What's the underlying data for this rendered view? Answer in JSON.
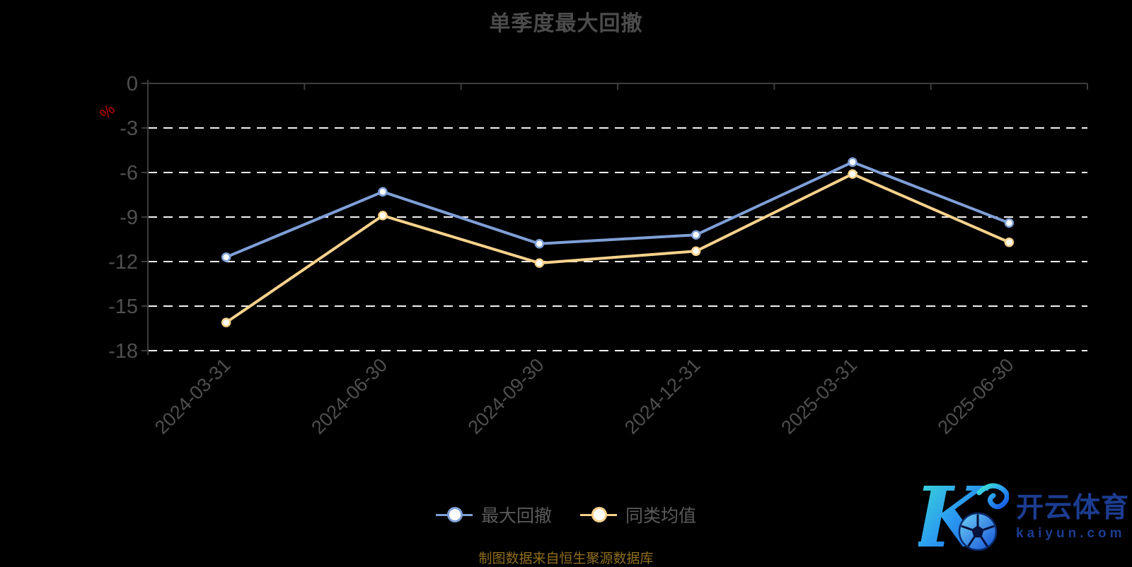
{
  "title": "单季度最大回撤",
  "caption": "制图数据来自恒生聚源数据库",
  "watermark": {
    "brand": "开云体育",
    "domain": "kaiyun.com",
    "logo_icon": "soccer-ball-K-logo"
  },
  "colors": {
    "background": "#000000",
    "title_text": "#4c4c4c",
    "axis_line": "#3d3d3d",
    "tick_label": "#4f4f4f",
    "gridline": "#f2f2f2",
    "series_1": "#7f9fd7",
    "series_2": "#f8d28c",
    "legend_text": "#5a5a5a",
    "caption_text": "#8f6e1e",
    "ylabel_text": "#c40000",
    "watermark_text": "#1c3c90",
    "marker_fill": "#ffffff"
  },
  "chart_data": {
    "type": "line",
    "title": "单季度最大回撤",
    "xlabel": "",
    "ylabel": "%",
    "ylim": [
      -18,
      0
    ],
    "yticks": [
      0,
      -3,
      -6,
      -9,
      -12,
      -15,
      -18
    ],
    "grid": true,
    "grid_style": "dashed",
    "legend_position": "bottom",
    "categories": [
      "2024-03-31",
      "2024-06-30",
      "2024-09-30",
      "2024-12-31",
      "2025-03-31",
      "2025-06-30"
    ],
    "series": [
      {
        "name": "最大回撤",
        "color": "#7f9fd7",
        "values": [
          -11.7,
          -7.3,
          -10.8,
          -10.2,
          -5.3,
          -9.4
        ]
      },
      {
        "name": "同类均值",
        "color": "#f8d28c",
        "values": [
          -16.1,
          -8.9,
          -12.1,
          -11.3,
          -6.1,
          -10.7
        ]
      }
    ]
  }
}
